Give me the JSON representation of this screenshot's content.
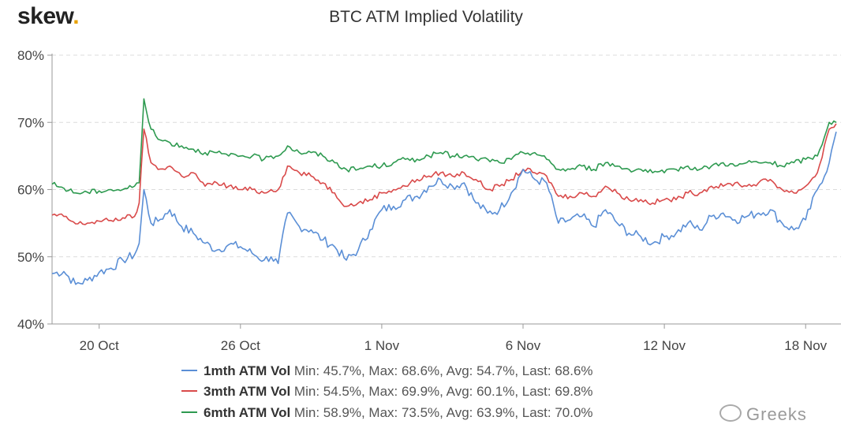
{
  "logo": {
    "text": "skew",
    "dot": "."
  },
  "chart_data": {
    "type": "line",
    "title": "BTC ATM Implied Volatility",
    "xlabel": "",
    "ylabel": "",
    "ylim": [
      40,
      80
    ],
    "yticks": [
      "40%",
      "50%",
      "60%",
      "70%",
      "80%"
    ],
    "ytick_values": [
      40,
      50,
      60,
      70,
      80
    ],
    "xlim": [
      0,
      33.5
    ],
    "xtick_positions": [
      2,
      8,
      14,
      20,
      26,
      32
    ],
    "xtick_labels": [
      "20 Oct",
      "26 Oct",
      "1 Nov",
      "6 Nov",
      "12 Nov",
      "18 Nov"
    ],
    "grid": "horizontal dashed",
    "x_note": "x is days from 18 Oct",
    "series": [
      {
        "name": "1mth ATM Vol",
        "color": "#5b8fd6",
        "stats": "Min: 45.7%, Max: 68.6%, Avg: 54.7%, Last: 68.6%",
        "x": [
          0,
          0.5,
          1.0,
          1.5,
          2.0,
          2.5,
          3.0,
          3.5,
          3.7,
          3.9,
          4.2,
          4.5,
          5.0,
          5.5,
          6.0,
          6.5,
          7.0,
          7.5,
          8.0,
          8.5,
          9.0,
          9.3,
          9.6,
          10.0,
          10.5,
          11.0,
          11.5,
          12.0,
          12.5,
          13.0,
          13.5,
          14.0,
          14.5,
          15.0,
          15.5,
          16.0,
          16.5,
          17.0,
          17.5,
          18.0,
          18.5,
          19.0,
          19.5,
          20.0,
          20.5,
          21.0,
          21.5,
          22.0,
          22.5,
          23.0,
          23.5,
          24.0,
          24.5,
          25.0,
          25.5,
          26.0,
          26.5,
          27.0,
          27.5,
          28.0,
          28.5,
          29.0,
          29.5,
          30.0,
          30.5,
          31.0,
          31.5,
          32.0,
          32.5,
          33.0,
          33.3
        ],
        "y": [
          47.5,
          47.8,
          45.9,
          46.5,
          47.7,
          48.3,
          49.5,
          50.3,
          52.0,
          60.0,
          55.0,
          55.3,
          57.0,
          54.5,
          53.5,
          52.0,
          51.0,
          51.8,
          51.5,
          50.5,
          49.5,
          50.0,
          49.0,
          56.5,
          54.5,
          54.0,
          52.5,
          51.5,
          49.5,
          51.0,
          54.0,
          57.0,
          57.5,
          58.5,
          59.0,
          60.5,
          61.5,
          60.5,
          61.0,
          58.0,
          56.5,
          57.0,
          59.5,
          63.0,
          61.5,
          61.0,
          55.0,
          55.5,
          56.0,
          54.5,
          57.0,
          55.0,
          53.5,
          53.0,
          52.0,
          53.0,
          53.5,
          55.0,
          54.0,
          56.0,
          56.5,
          55.5,
          56.0,
          56.5,
          57.0,
          55.0,
          54.0,
          55.5,
          60.0,
          64.0,
          68.6
        ]
      },
      {
        "name": "3mth ATM Vol",
        "color": "#d94a4a",
        "stats": "Min: 54.5%, Max: 69.9%, Avg: 60.1%, Last: 69.8%",
        "x": [
          0,
          0.5,
          1.0,
          1.5,
          2.0,
          2.5,
          3.0,
          3.5,
          3.7,
          3.9,
          4.2,
          4.5,
          5.0,
          5.5,
          6.0,
          6.5,
          7.0,
          7.5,
          8.0,
          8.5,
          9.0,
          9.3,
          9.6,
          10.0,
          10.5,
          11.0,
          11.5,
          12.0,
          12.5,
          13.0,
          13.5,
          14.0,
          14.5,
          15.0,
          15.5,
          16.0,
          16.5,
          17.0,
          17.5,
          18.0,
          18.5,
          19.0,
          19.5,
          20.0,
          20.5,
          21.0,
          21.5,
          22.0,
          22.5,
          23.0,
          23.5,
          24.0,
          24.5,
          25.0,
          25.5,
          26.0,
          26.5,
          27.0,
          27.5,
          28.0,
          28.5,
          29.0,
          29.5,
          30.0,
          30.5,
          31.0,
          31.5,
          32.0,
          32.5,
          33.0,
          33.3
        ],
        "y": [
          56.2,
          56.0,
          54.9,
          55.0,
          55.3,
          55.4,
          55.8,
          56.0,
          58.0,
          69.0,
          64.0,
          63.0,
          63.5,
          62.0,
          62.5,
          60.5,
          61.0,
          60.5,
          60.0,
          60.0,
          59.5,
          60.0,
          60.0,
          63.5,
          62.5,
          62.0,
          61.0,
          59.5,
          57.5,
          58.0,
          58.5,
          59.5,
          60.0,
          60.5,
          61.5,
          62.0,
          62.5,
          62.0,
          62.5,
          61.5,
          60.0,
          60.5,
          61.5,
          63.0,
          62.5,
          62.0,
          59.0,
          59.0,
          59.5,
          59.0,
          60.5,
          59.5,
          58.5,
          58.5,
          58.0,
          58.5,
          58.5,
          59.5,
          59.5,
          60.5,
          60.5,
          61.0,
          60.5,
          61.0,
          61.5,
          60.0,
          59.5,
          60.5,
          62.5,
          69.0,
          69.8
        ]
      },
      {
        "name": "6mth ATM Vol",
        "color": "#2e9a50",
        "stats": "Min: 58.9%, Max: 73.5%, Avg: 63.9%, Last: 70.0%",
        "x": [
          0,
          0.5,
          1.0,
          1.5,
          2.0,
          2.5,
          3.0,
          3.5,
          3.7,
          3.9,
          4.2,
          4.5,
          5.0,
          5.5,
          6.0,
          6.5,
          7.0,
          7.5,
          8.0,
          8.5,
          9.0,
          9.3,
          9.6,
          10.0,
          10.5,
          11.0,
          11.5,
          12.0,
          12.5,
          13.0,
          13.5,
          14.0,
          14.5,
          15.0,
          15.5,
          16.0,
          16.5,
          17.0,
          17.5,
          18.0,
          18.5,
          19.0,
          19.5,
          20.0,
          20.5,
          21.0,
          21.5,
          22.0,
          22.5,
          23.0,
          23.5,
          24.0,
          24.5,
          25.0,
          25.5,
          26.0,
          26.5,
          27.0,
          27.5,
          28.0,
          28.5,
          29.0,
          29.5,
          30.0,
          30.5,
          31.0,
          31.5,
          32.0,
          32.5,
          33.0,
          33.3
        ],
        "y": [
          60.8,
          60.2,
          59.5,
          59.6,
          59.8,
          60.0,
          60.0,
          60.5,
          61.0,
          73.5,
          69.0,
          67.5,
          67.0,
          66.5,
          66.0,
          65.5,
          65.5,
          65.0,
          65.0,
          65.0,
          64.5,
          65.0,
          65.0,
          66.5,
          65.5,
          65.5,
          65.0,
          64.0,
          63.0,
          63.0,
          63.5,
          63.5,
          64.0,
          64.5,
          64.5,
          65.0,
          65.5,
          65.0,
          65.0,
          64.5,
          64.5,
          64.0,
          64.5,
          65.5,
          65.5,
          64.5,
          63.0,
          63.0,
          63.5,
          63.0,
          64.0,
          63.5,
          63.0,
          63.0,
          62.5,
          62.5,
          63.0,
          63.5,
          63.0,
          63.5,
          64.0,
          63.5,
          64.0,
          64.0,
          64.0,
          63.5,
          64.0,
          64.5,
          65.0,
          70.0,
          70.0
        ]
      }
    ]
  },
  "watermark": {
    "text": "Greeks"
  }
}
